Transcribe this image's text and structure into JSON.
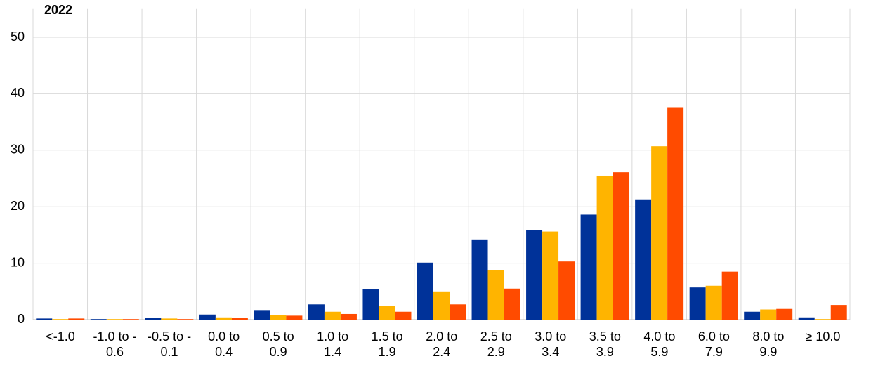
{
  "chart_data": {
    "type": "bar",
    "title": "2022",
    "categories": [
      "<-1.0",
      "-1.0 to -\n0.6",
      "-0.5 to -\n0.1",
      "0.0 to\n0.4",
      "0.5 to\n0.9",
      "1.0 to\n1.4",
      "1.5 to\n1.9",
      "2.0 to\n2.4",
      "2.5 to\n2.9",
      "3.0 to\n3.4",
      "3.5 to\n3.9",
      "4.0 to\n5.9",
      "6.0 to\n7.9",
      "8.0 to\n9.9",
      "≥ 10.0"
    ],
    "series": [
      {
        "color": "#003299",
        "values": [
          0.2,
          0.1,
          0.3,
          0.9,
          1.7,
          2.7,
          5.4,
          10.1,
          14.2,
          15.8,
          18.6,
          21.3,
          5.7,
          1.4,
          0.4
        ]
      },
      {
        "color": "#ffb400",
        "values": [
          0.1,
          0.1,
          0.2,
          0.4,
          0.8,
          1.4,
          2.4,
          5.0,
          8.8,
          15.6,
          25.5,
          30.7,
          6.0,
          1.8,
          0.1
        ]
      },
      {
        "color": "#ff4b00",
        "values": [
          0.2,
          0.1,
          0.1,
          0.3,
          0.7,
          1.0,
          1.4,
          2.7,
          5.5,
          10.3,
          26.1,
          37.5,
          8.5,
          1.9,
          2.6
        ]
      }
    ],
    "ylim": [
      0,
      55
    ],
    "yticks": [
      0,
      10,
      20,
      30,
      40,
      50
    ],
    "grid": true
  }
}
